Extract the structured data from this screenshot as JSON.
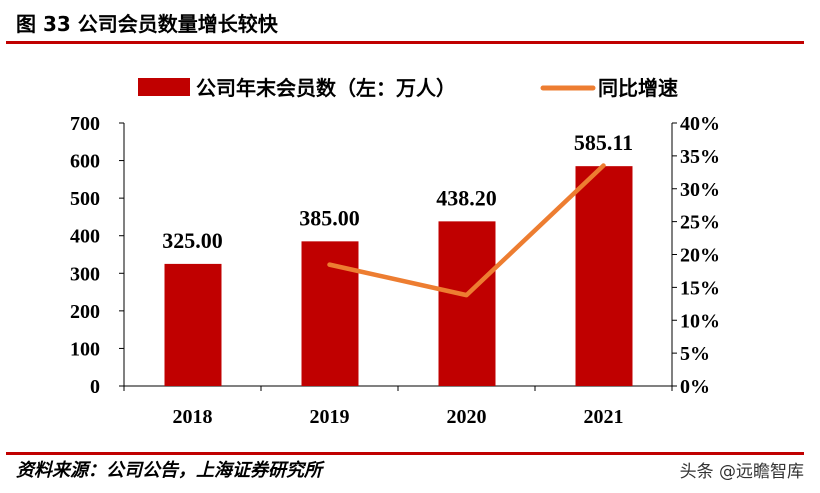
{
  "title": "图 33 公司会员数量增长较快",
  "source": "资料来源：公司公告，上海证券研究所",
  "watermark": "头条 @远瞻智库",
  "chart_data": {
    "type": "bar+line",
    "categories": [
      "2018",
      "2019",
      "2020",
      "2021"
    ],
    "series": [
      {
        "name": "公司年末会员数（左：万人）",
        "type": "bar",
        "axis": "left",
        "values": [
          325.0,
          385.0,
          438.2,
          585.11
        ],
        "labels": [
          "325.00",
          "385.00",
          "438.20",
          "585.11"
        ],
        "color": "#c00000"
      },
      {
        "name": "同比增速",
        "type": "line",
        "axis": "right",
        "values": [
          null,
          18.46,
          13.82,
          33.53
        ],
        "color": "#ed7d31"
      }
    ],
    "left_axis": {
      "ylim": [
        0,
        700
      ],
      "ticks": [
        "0",
        "100",
        "200",
        "300",
        "400",
        "500",
        "600",
        "700"
      ]
    },
    "right_axis": {
      "ylim": [
        0,
        40
      ],
      "ticks": [
        "0%",
        "5%",
        "10%",
        "15%",
        "20%",
        "25%",
        "30%",
        "35%",
        "40%"
      ]
    },
    "legend": "top",
    "grid": false
  }
}
